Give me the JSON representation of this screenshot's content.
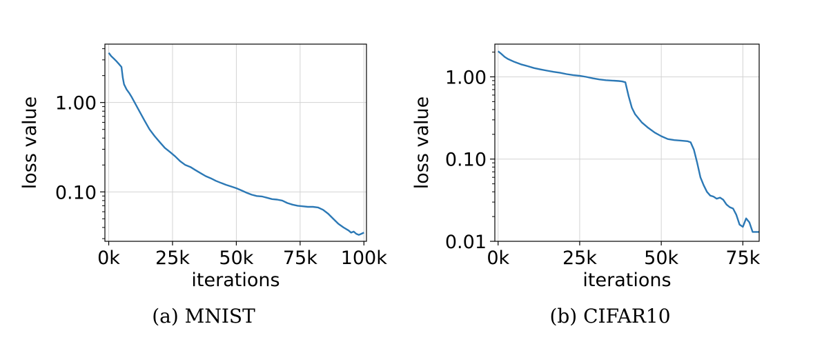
{
  "chart_data": [
    {
      "type": "line",
      "caption": "(a) MNIST",
      "xlabel": "iterations",
      "ylabel": "loss value",
      "yscale": "log",
      "xlim": [
        -1500,
        101000
      ],
      "ylim": [
        0.028,
        4.5
      ],
      "xticks": [
        0,
        25000,
        50000,
        75000,
        100000
      ],
      "xtick_labels": [
        "0k",
        "25k",
        "50k",
        "75k",
        "100k"
      ],
      "yticks": [
        0.1,
        1.0
      ],
      "ytick_labels": [
        "0.10",
        "1.00"
      ],
      "grid": true,
      "line_color": "#2b78b5",
      "series": [
        {
          "x": [
            0,
            1000,
            2000,
            3000,
            4000,
            5000,
            5500,
            6000,
            7000,
            8000,
            9000,
            10000,
            12000,
            14000,
            16000,
            18000,
            20000,
            22000,
            24000,
            26000,
            28000,
            30000,
            32000,
            34000,
            36000,
            38000,
            40000,
            42000,
            44000,
            46000,
            48000,
            50000,
            52000,
            54000,
            56000,
            58000,
            60000,
            62000,
            64000,
            66000,
            68000,
            70000,
            72000,
            74000,
            76000,
            78000,
            80000,
            82000,
            84000,
            86000,
            88000,
            90000,
            92000,
            94000,
            95000,
            96000,
            97000,
            98000,
            99000,
            100000
          ],
          "y": [
            3.6,
            3.3,
            3.1,
            2.9,
            2.7,
            2.5,
            1.9,
            1.6,
            1.4,
            1.28,
            1.15,
            1.02,
            0.8,
            0.63,
            0.5,
            0.42,
            0.36,
            0.31,
            0.28,
            0.25,
            0.22,
            0.2,
            0.19,
            0.175,
            0.162,
            0.15,
            0.142,
            0.133,
            0.126,
            0.12,
            0.115,
            0.11,
            0.104,
            0.098,
            0.093,
            0.09,
            0.089,
            0.086,
            0.083,
            0.082,
            0.08,
            0.075,
            0.072,
            0.07,
            0.069,
            0.068,
            0.068,
            0.067,
            0.063,
            0.057,
            0.05,
            0.044,
            0.04,
            0.037,
            0.035,
            0.036,
            0.034,
            0.033,
            0.034,
            0.035
          ]
        }
      ]
    },
    {
      "type": "line",
      "caption": "(b) CIFAR10",
      "xlabel": "iterations",
      "ylabel": "loss value",
      "yscale": "log",
      "xlim": [
        -1000,
        80000
      ],
      "ylim": [
        0.01,
        2.5
      ],
      "xticks": [
        0,
        25000,
        50000,
        75000
      ],
      "xtick_labels": [
        "0k",
        "25k",
        "50k",
        "75k"
      ],
      "yticks": [
        0.01,
        0.1,
        1.0
      ],
      "ytick_labels": [
        "0.01",
        "0.10",
        "1.00"
      ],
      "grid": true,
      "line_color": "#2b78b5",
      "series": [
        {
          "x": [
            0,
            1000,
            2000,
            3000,
            5000,
            7000,
            9000,
            11000,
            13000,
            15000,
            17000,
            19000,
            21000,
            23000,
            25000,
            27000,
            29000,
            31000,
            33000,
            35000,
            37000,
            38000,
            39000,
            40000,
            41000,
            42000,
            44000,
            46000,
            48000,
            50000,
            52000,
            54000,
            56000,
            58000,
            59000,
            60000,
            61000,
            62000,
            63000,
            64000,
            65000,
            66000,
            67000,
            68000,
            69000,
            70000,
            71000,
            72000,
            73000,
            74000,
            75000,
            76000,
            77000,
            78000,
            79000,
            80000
          ],
          "y": [
            2.05,
            1.9,
            1.75,
            1.65,
            1.52,
            1.42,
            1.35,
            1.28,
            1.23,
            1.19,
            1.15,
            1.12,
            1.08,
            1.05,
            1.03,
            1.0,
            0.96,
            0.93,
            0.91,
            0.9,
            0.89,
            0.88,
            0.86,
            0.58,
            0.42,
            0.35,
            0.28,
            0.24,
            0.21,
            0.19,
            0.175,
            0.17,
            0.168,
            0.165,
            0.16,
            0.13,
            0.09,
            0.06,
            0.048,
            0.04,
            0.036,
            0.035,
            0.033,
            0.034,
            0.032,
            0.028,
            0.026,
            0.025,
            0.021,
            0.016,
            0.015,
            0.019,
            0.017,
            0.013,
            0.013,
            0.013
          ]
        }
      ]
    }
  ]
}
